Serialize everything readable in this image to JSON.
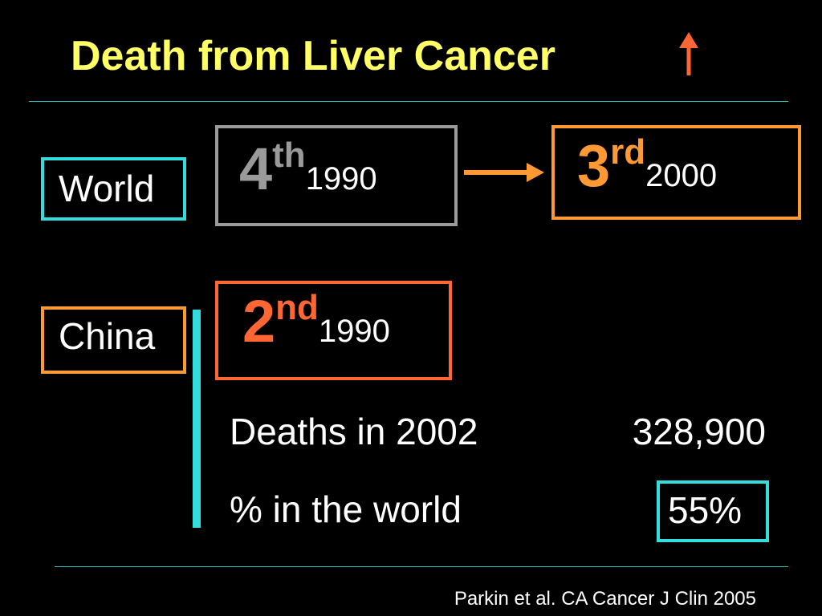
{
  "title": "Death from Liver Cancer",
  "colors": {
    "title": "#ffff66",
    "cyan": "#33dddd",
    "orange": "#ff9933",
    "gray": "#9a9a9a",
    "red_orange": "#ff6633",
    "text": "#ffffff"
  },
  "icons": {
    "title_arrow": "up-arrow-icon",
    "transition_arrow": "right-arrow-icon"
  },
  "world": {
    "label": "World",
    "from": {
      "num": "4",
      "suffix": "th",
      "year": "1990"
    },
    "to": {
      "num": "3",
      "suffix": "rd",
      "year": "2000"
    }
  },
  "china": {
    "label": "China",
    "rank": {
      "num": "2",
      "suffix": "nd",
      "year": "1990"
    },
    "stats": [
      {
        "label": "Deaths in 2002",
        "value": "328,900"
      },
      {
        "label": "% in the world",
        "value": "55%"
      }
    ]
  },
  "citation": "Parkin et al. CA Cancer J Clin 2005"
}
